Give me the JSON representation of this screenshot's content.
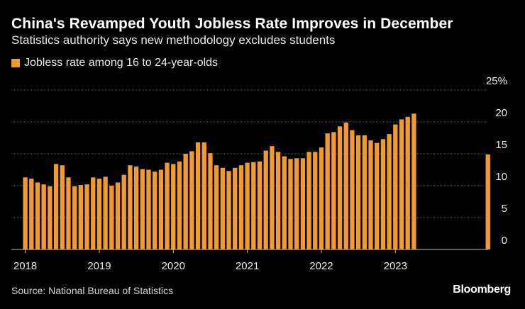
{
  "header": {
    "title": "China's Revamped Youth Jobless Rate Improves in December",
    "subtitle": "Statistics authority says new methodology excludes students"
  },
  "footer": {
    "source": "Source: National Bureau of Statistics",
    "brand": "Bloomberg"
  },
  "colors": {
    "bar": "#f29a32",
    "background": "#000000",
    "grid": "#4a4a4a",
    "text": "#e9e9e9"
  },
  "chart_data": {
    "type": "bar",
    "legend": "Jobless rate among 16 to 24-year-olds",
    "legend_position": "top-left",
    "y_axis_side": "right",
    "ylim": [
      0,
      25
    ],
    "yticks": [
      0,
      5,
      10,
      15,
      20,
      25
    ],
    "ytick_labels": [
      "0",
      "5",
      "10",
      "15",
      "20",
      "25%"
    ],
    "xticks": [
      "2018",
      "2019",
      "2020",
      "2021",
      "2022",
      "2023"
    ],
    "grid": true,
    "start": "2018-01",
    "series": [
      {
        "name": "Jobless rate among 16 to 24-year-olds",
        "values": [
          11.3,
          11.1,
          10.5,
          10.2,
          9.9,
          13.4,
          13.2,
          11.3,
          9.9,
          10.1,
          10.2,
          11.3,
          11.1,
          11.4,
          10.0,
          10.5,
          11.7,
          13.2,
          13.0,
          12.6,
          12.5,
          12.2,
          12.5,
          13.6,
          13.4,
          13.8,
          15.0,
          15.4,
          16.8,
          16.8,
          15.1,
          13.2,
          12.8,
          12.3,
          12.8,
          13.2,
          13.6,
          13.7,
          13.8,
          15.5,
          16.2,
          15.3,
          14.6,
          14.2,
          14.3,
          14.3,
          15.3,
          15.3,
          16.0,
          18.2,
          18.4,
          19.3,
          19.9,
          18.7,
          17.9,
          17.9,
          17.1,
          16.7,
          17.3,
          18.1,
          19.6,
          20.4,
          20.8,
          21.3,
          null,
          null,
          null,
          null,
          null,
          null,
          null,
          null,
          null,
          null,
          null,
          14.9
        ]
      }
    ]
  }
}
